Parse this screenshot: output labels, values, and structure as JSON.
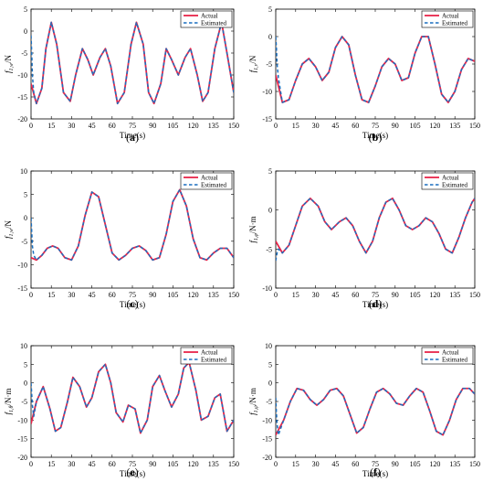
{
  "legend_labels": [
    "Actual",
    "Estimated"
  ],
  "colors": {
    "actual": "#e8254a",
    "estimated": "#1a6fbf"
  },
  "chart_data": [
    {
      "id": "a",
      "caption_letter": "a",
      "type": "line",
      "ylabel_main": "f",
      "ylabel_sub": "1,w",
      "ylabel_unit": "/N",
      "xlabel": "Time(s)",
      "xlim": [
        0,
        150
      ],
      "ylim": [
        -20,
        5
      ],
      "xticks": [
        0,
        15,
        30,
        45,
        60,
        75,
        90,
        105,
        120,
        135,
        150
      ],
      "yticks": [
        5,
        0,
        -5,
        -10,
        -15,
        -20
      ],
      "legend_position": "top-right",
      "series": [
        {
          "name": "Actual",
          "style": "solid",
          "x": [
            0,
            4,
            8,
            11,
            15,
            19,
            24,
            29,
            33,
            38,
            42,
            46,
            51,
            55,
            59,
            64,
            69,
            74,
            78,
            83,
            87,
            91,
            96,
            100,
            104,
            109,
            114,
            118,
            123,
            127,
            131,
            136,
            141,
            145,
            150
          ],
          "y": [
            -12,
            -16.5,
            -13,
            -4,
            2,
            -3,
            -14,
            -16,
            -10,
            -4,
            -6.5,
            -10,
            -6,
            -4,
            -8,
            -16.5,
            -14,
            -3,
            2,
            -3,
            -14,
            -16.5,
            -12,
            -4,
            -6.5,
            -10,
            -6,
            -4,
            -10,
            -16,
            -14,
            -4,
            2,
            -5,
            -14
          ]
        },
        {
          "name": "Estimated",
          "style": "dashed",
          "x": [
            0,
            0.5,
            1,
            2,
            4,
            8,
            11,
            15,
            19,
            24,
            29,
            33,
            38,
            42,
            46,
            51,
            55,
            59,
            64,
            69,
            74,
            78,
            83,
            87,
            91,
            96,
            100,
            104,
            109,
            114,
            118,
            123,
            127,
            131,
            136,
            141,
            145,
            150
          ],
          "y": [
            -1,
            -5,
            -10,
            -14,
            -16.5,
            -13,
            -4,
            2,
            -3,
            -14,
            -16,
            -10,
            -4,
            -6.5,
            -10,
            -6,
            -4,
            -8,
            -16.5,
            -14,
            -3,
            2,
            -3,
            -14,
            -16.5,
            -12,
            -4,
            -6.5,
            -10,
            -6,
            -4,
            -10,
            -16,
            -14,
            -4,
            2,
            -5,
            -14
          ]
        }
      ]
    },
    {
      "id": "b",
      "caption_letter": "b",
      "type": "line",
      "ylabel_main": "f",
      "ylabel_sub": "1,v",
      "ylabel_unit": "/N",
      "xlabel": "Time(s)",
      "xlim": [
        0,
        150
      ],
      "ylim": [
        -15,
        5
      ],
      "xticks": [
        0,
        15,
        30,
        45,
        60,
        75,
        90,
        105,
        120,
        135,
        150
      ],
      "yticks": [
        5,
        0,
        -5,
        -10,
        -15
      ],
      "legend_position": "top-right",
      "series": [
        {
          "name": "Actual",
          "style": "solid",
          "x": [
            0,
            5,
            10,
            15,
            20,
            25,
            30,
            35,
            40,
            45,
            50,
            55,
            60,
            65,
            70,
            75,
            80,
            85,
            90,
            95,
            100,
            105,
            110,
            115,
            120,
            125,
            130,
            135,
            140,
            145,
            150
          ],
          "y": [
            -7,
            -12,
            -11.5,
            -8,
            -5,
            -4,
            -5.5,
            -8,
            -6.5,
            -2,
            0,
            -1.5,
            -7,
            -11.5,
            -12,
            -9,
            -5.5,
            -4,
            -5,
            -8,
            -7.5,
            -3,
            0,
            0,
            -5,
            -10.5,
            -12,
            -10,
            -6,
            -4,
            -4.5
          ]
        },
        {
          "name": "Estimated",
          "style": "dashed",
          "x": [
            0,
            0.5,
            1,
            2,
            5,
            10,
            15,
            20,
            25,
            30,
            35,
            40,
            45,
            50,
            55,
            60,
            65,
            70,
            75,
            80,
            85,
            90,
            95,
            100,
            105,
            110,
            115,
            120,
            125,
            130,
            135,
            140,
            145,
            150
          ],
          "y": [
            0,
            -2,
            -5,
            -7.5,
            -12,
            -11.5,
            -8,
            -5,
            -4,
            -5.5,
            -8,
            -6.5,
            -2,
            0,
            -1.5,
            -7,
            -11.5,
            -12,
            -9,
            -5.5,
            -4,
            -5,
            -8,
            -7.5,
            -3,
            0,
            0,
            -5,
            -10.5,
            -12,
            -10,
            -6,
            -4,
            -4.5
          ]
        }
      ]
    },
    {
      "id": "c",
      "caption_letter": "c",
      "type": "line",
      "ylabel_main": "f",
      "ylabel_sub": "1,w",
      "ylabel_unit": "/N",
      "xlabel": "Time(s)",
      "xlim": [
        0,
        150
      ],
      "ylim": [
        -15,
        10
      ],
      "xticks": [
        0,
        15,
        30,
        45,
        60,
        75,
        90,
        105,
        120,
        135,
        150
      ],
      "yticks": [
        10,
        5,
        0,
        -5,
        -10,
        -15
      ],
      "legend_position": "top-right",
      "series": [
        {
          "name": "Actual",
          "style": "solid",
          "x": [
            0,
            4,
            8,
            12,
            16,
            20,
            25,
            30,
            35,
            40,
            45,
            50,
            55,
            60,
            65,
            70,
            75,
            80,
            85,
            90,
            95,
            100,
            105,
            110,
            115,
            120,
            125,
            130,
            135,
            140,
            145,
            150
          ],
          "y": [
            -8.5,
            -9,
            -8,
            -6.5,
            -6,
            -6.5,
            -8.5,
            -9,
            -6,
            0.5,
            5.5,
            4.5,
            -1.5,
            -7.5,
            -9,
            -8,
            -6.5,
            -6,
            -7,
            -9,
            -8.5,
            -3.5,
            3.5,
            6,
            2.5,
            -4.5,
            -8.5,
            -9,
            -7.5,
            -6.5,
            -6.5,
            -8.5
          ]
        },
        {
          "name": "Estimated",
          "style": "dashed",
          "x": [
            0,
            0.5,
            1,
            2,
            4,
            8,
            12,
            16,
            20,
            25,
            30,
            35,
            40,
            45,
            50,
            55,
            60,
            65,
            70,
            75,
            80,
            85,
            90,
            95,
            100,
            105,
            110,
            115,
            120,
            125,
            130,
            135,
            140,
            145,
            150
          ],
          "y": [
            0,
            -3,
            -6,
            -8,
            -9,
            -8,
            -6.5,
            -6,
            -6.5,
            -8.5,
            -9,
            -6,
            0.5,
            5.5,
            4.5,
            -1.5,
            -7.5,
            -9,
            -8,
            -6.5,
            -6,
            -7,
            -9,
            -8.5,
            -3.5,
            3.5,
            6,
            2.5,
            -4.5,
            -8.5,
            -9,
            -7.5,
            -6.5,
            -6.5,
            -8.5
          ]
        }
      ]
    },
    {
      "id": "d",
      "caption_letter": "d",
      "type": "line",
      "ylabel_main": "f",
      "ylabel_sub": "1,φ",
      "ylabel_unit": "/N·m",
      "xlabel": "Time(s)",
      "xlim": [
        0,
        150
      ],
      "ylim": [
        -10,
        5
      ],
      "xticks": [
        0,
        15,
        30,
        45,
        60,
        75,
        90,
        105,
        120,
        135,
        150
      ],
      "yticks": [
        5,
        0,
        -5,
        -10
      ],
      "legend_position": "top-right",
      "series": [
        {
          "name": "Actual",
          "style": "solid",
          "x": [
            0,
            5,
            10,
            15,
            20,
            26,
            32,
            37,
            42,
            48,
            53,
            58,
            63,
            68,
            73,
            78,
            83,
            88,
            93,
            98,
            103,
            108,
            113,
            118,
            123,
            128,
            133,
            138,
            143,
            148,
            150
          ],
          "y": [
            -4,
            -5.5,
            -4.5,
            -2,
            0.5,
            1.5,
            0.5,
            -1.5,
            -2.5,
            -1.5,
            -1,
            -2,
            -4,
            -5.5,
            -4,
            -1,
            1,
            1.5,
            0,
            -2,
            -2.5,
            -2,
            -1,
            -1.5,
            -3,
            -5,
            -5.5,
            -3.5,
            -1,
            1,
            1.5
          ]
        },
        {
          "name": "Estimated",
          "style": "dashed",
          "x": [
            0,
            0.5,
            1,
            2,
            5,
            10,
            15,
            20,
            26,
            32,
            37,
            42,
            48,
            53,
            58,
            63,
            68,
            73,
            78,
            83,
            88,
            93,
            98,
            103,
            108,
            113,
            118,
            123,
            128,
            133,
            138,
            143,
            148,
            150
          ],
          "y": [
            -6.5,
            -6,
            -5.5,
            -5,
            -5.5,
            -4.5,
            -2,
            0.5,
            1.5,
            0.5,
            -1.5,
            -2.5,
            -1.5,
            -1,
            -2,
            -4,
            -5.5,
            -4,
            -1,
            1,
            1.5,
            0,
            -2,
            -2.5,
            -2,
            -1,
            -1.5,
            -3,
            -5,
            -5.5,
            -3.5,
            -1,
            1,
            1.5
          ]
        }
      ]
    },
    {
      "id": "e",
      "caption_letter": "e",
      "type": "line",
      "ylabel_main": "f",
      "ylabel_sub": "1,θ",
      "ylabel_unit": "/N·m",
      "xlabel": "Time(s)",
      "xlim": [
        0,
        150
      ],
      "ylim": [
        -20,
        10
      ],
      "xticks": [
        0,
        15,
        30,
        45,
        60,
        75,
        90,
        105,
        120,
        135,
        150
      ],
      "yticks": [
        10,
        5,
        0,
        -5,
        -10,
        -15,
        -20
      ],
      "legend_position": "top-right",
      "series": [
        {
          "name": "Actual",
          "style": "solid",
          "x": [
            0,
            4,
            9,
            14,
            18,
            22,
            27,
            31,
            36,
            41,
            45,
            50,
            55,
            59,
            63,
            68,
            72,
            77,
            81,
            86,
            90,
            95,
            99,
            104,
            109,
            113,
            117,
            122,
            126,
            131,
            136,
            140,
            145,
            150
          ],
          "y": [
            -11,
            -5,
            -1,
            -7,
            -13,
            -12,
            -5,
            1.5,
            -1,
            -6.5,
            -4,
            3,
            5,
            0,
            -8,
            -10.5,
            -6,
            -7,
            -13.5,
            -10,
            -1,
            2,
            -2,
            -6.5,
            -3,
            4,
            5.5,
            -2,
            -10,
            -9,
            -4,
            -3,
            -13,
            -10
          ]
        },
        {
          "name": "Estimated",
          "style": "dashed",
          "x": [
            0,
            0.5,
            1,
            2,
            4,
            9,
            14,
            18,
            22,
            27,
            31,
            36,
            41,
            45,
            50,
            55,
            59,
            63,
            68,
            72,
            77,
            81,
            86,
            90,
            95,
            99,
            104,
            109,
            113,
            117,
            122,
            126,
            131,
            136,
            140,
            145,
            150
          ],
          "y": [
            0,
            -3,
            -6,
            -9,
            -5,
            -1,
            -7,
            -13,
            -12,
            -5,
            1.5,
            -1,
            -6.5,
            -4,
            3,
            5,
            0,
            -8,
            -10.5,
            -6,
            -7,
            -13.5,
            -10,
            -1,
            2,
            -2,
            -6.5,
            -3,
            4,
            5.5,
            -2,
            -10,
            -9,
            -4,
            -3,
            -13,
            -10
          ]
        }
      ]
    },
    {
      "id": "f",
      "caption_letter": "f",
      "type": "line",
      "ylabel_main": "f",
      "ylabel_sub": "1,ψ",
      "ylabel_unit": "/N·m",
      "xlabel": "Time(s)",
      "xlim": [
        0,
        150
      ],
      "ylim": [
        -20,
        10
      ],
      "xticks": [
        0,
        15,
        30,
        45,
        60,
        75,
        90,
        105,
        120,
        135,
        150
      ],
      "yticks": [
        10,
        5,
        0,
        -5,
        -10,
        -15,
        -20
      ],
      "legend_position": "top-right",
      "series": [
        {
          "name": "Actual",
          "style": "solid",
          "x": [
            0,
            6,
            11,
            16,
            21,
            26,
            31,
            36,
            41,
            46,
            51,
            56,
            61,
            66,
            71,
            76,
            81,
            86,
            91,
            96,
            101,
            106,
            111,
            116,
            121,
            126,
            131,
            136,
            141,
            146,
            150
          ],
          "y": [
            -14,
            -10,
            -5,
            -1.5,
            -2,
            -4.5,
            -6,
            -4.5,
            -2,
            -1.5,
            -3.5,
            -8.5,
            -13.5,
            -12,
            -7,
            -2.5,
            -1.5,
            -3,
            -5.5,
            -6,
            -3.5,
            -1.5,
            -2.5,
            -7.5,
            -13,
            -14,
            -10,
            -4.5,
            -1.5,
            -1.5,
            -3
          ]
        },
        {
          "name": "Estimated",
          "style": "dashed",
          "x": [
            0,
            0.5,
            1,
            2,
            6,
            11,
            16,
            21,
            26,
            31,
            36,
            41,
            46,
            51,
            56,
            61,
            66,
            71,
            76,
            81,
            86,
            91,
            96,
            101,
            106,
            111,
            116,
            121,
            126,
            131,
            136,
            141,
            146,
            150
          ],
          "y": [
            -4,
            -8,
            -11,
            -14,
            -10,
            -5,
            -1.5,
            -2,
            -4.5,
            -6,
            -4.5,
            -2,
            -1.5,
            -3.5,
            -8.5,
            -13.5,
            -12,
            -7,
            -2.5,
            -1.5,
            -3,
            -5.5,
            -6,
            -3.5,
            -1.5,
            -2.5,
            -7.5,
            -13,
            -14,
            -10,
            -4.5,
            -1.5,
            -1.5,
            -3
          ]
        }
      ]
    }
  ]
}
